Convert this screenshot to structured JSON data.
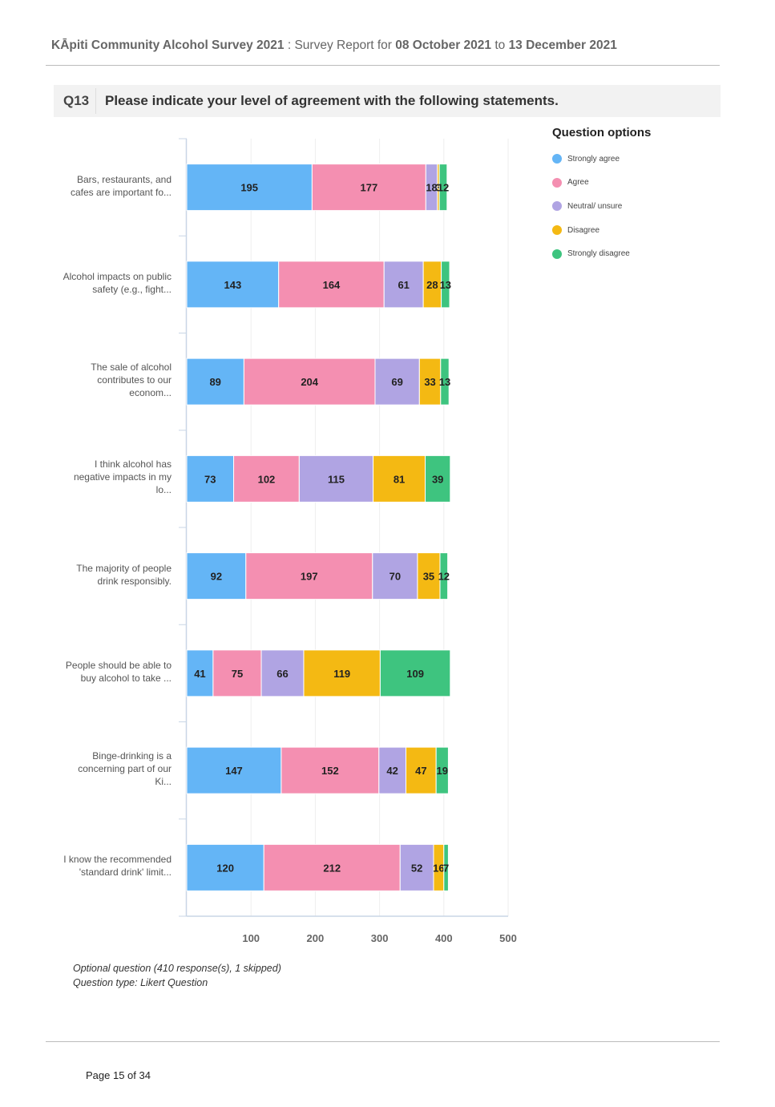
{
  "header": {
    "survey_name": "KĀpiti Community Alcohol Survey 2021",
    "separator": " : ",
    "report_prefix": "Survey Report for ",
    "date_from": "08 October 2021",
    "to_word": " to ",
    "date_to": "13 December 2021"
  },
  "question": {
    "number": "Q13",
    "text": "Please indicate your level of agreement with the following statements."
  },
  "legend": {
    "title": "Question options",
    "items": [
      {
        "label": "Strongly agree",
        "color": "#64b5f6"
      },
      {
        "label": "Agree",
        "color": "#f48fb1"
      },
      {
        "label": "Neutral/ unsure",
        "color": "#b0a4e3"
      },
      {
        "label": "Disagree",
        "color": "#f4b913"
      },
      {
        "label": "Strongly disagree",
        "color": "#3ec47f"
      }
    ]
  },
  "chart_data": {
    "type": "bar",
    "orientation": "horizontal",
    "stacked": true,
    "categories": [
      "Bars, restaurants, and cafes are important fo...",
      "Alcohol impacts on public safety (e.g., fight...",
      "The sale of alcohol contributes to our econom...",
      "I think alcohol has negative impacts in my lo...",
      "The majority of people drink responsibly.",
      "People should be able to buy alcohol to take ...",
      "Binge-drinking is a concerning part of our Ki...",
      "I know the recommended 'standard drink' limit..."
    ],
    "series": [
      {
        "name": "Strongly agree",
        "values": [
          195,
          143,
          89,
          73,
          92,
          41,
          147,
          120
        ]
      },
      {
        "name": "Agree",
        "values": [
          177,
          164,
          204,
          102,
          197,
          75,
          152,
          212
        ]
      },
      {
        "name": "Neutral/ unsure",
        "values": [
          18,
          61,
          69,
          115,
          70,
          66,
          42,
          52
        ]
      },
      {
        "name": "Disagree",
        "values": [
          3,
          28,
          33,
          81,
          35,
          119,
          47,
          16
        ]
      },
      {
        "name": "Strongly disagree",
        "values": [
          12,
          13,
          13,
          39,
          12,
          109,
          19,
          7
        ]
      }
    ],
    "xlim": [
      0,
      500
    ],
    "xticks": [
      100,
      200,
      300,
      400,
      500
    ],
    "legend_position": "right"
  },
  "footer": {
    "note": "Optional question (410 response(s), 1 skipped)",
    "type": "Question type: Likert Question",
    "page": "Page 15 of 34"
  }
}
